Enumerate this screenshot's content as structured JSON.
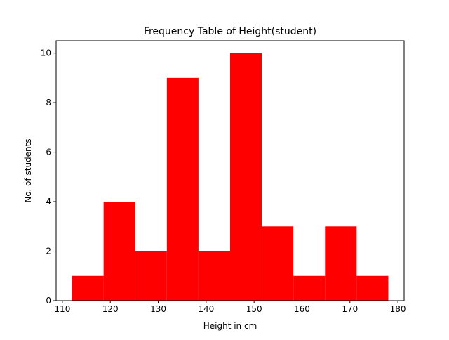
{
  "chart_data": {
    "type": "bar",
    "title": "Frequency Table of Height(student)",
    "xlabel": "Height in cm",
    "ylabel": "No. of students",
    "xlim": [
      108.7,
      181.3
    ],
    "ylim": [
      0,
      10.5
    ],
    "bin_edges": [
      112,
      118.6,
      125.2,
      131.8,
      138.4,
      145,
      151.6,
      158.2,
      164.8,
      171.4,
      178
    ],
    "values": [
      1,
      4,
      2,
      9,
      2,
      10,
      3,
      1,
      3,
      1
    ],
    "xticks": [
      110,
      120,
      130,
      140,
      150,
      160,
      170,
      180
    ],
    "yticks": [
      0,
      2,
      4,
      6,
      8,
      10
    ],
    "bar_color": "#ff0000",
    "grid": false,
    "legend": "none"
  }
}
